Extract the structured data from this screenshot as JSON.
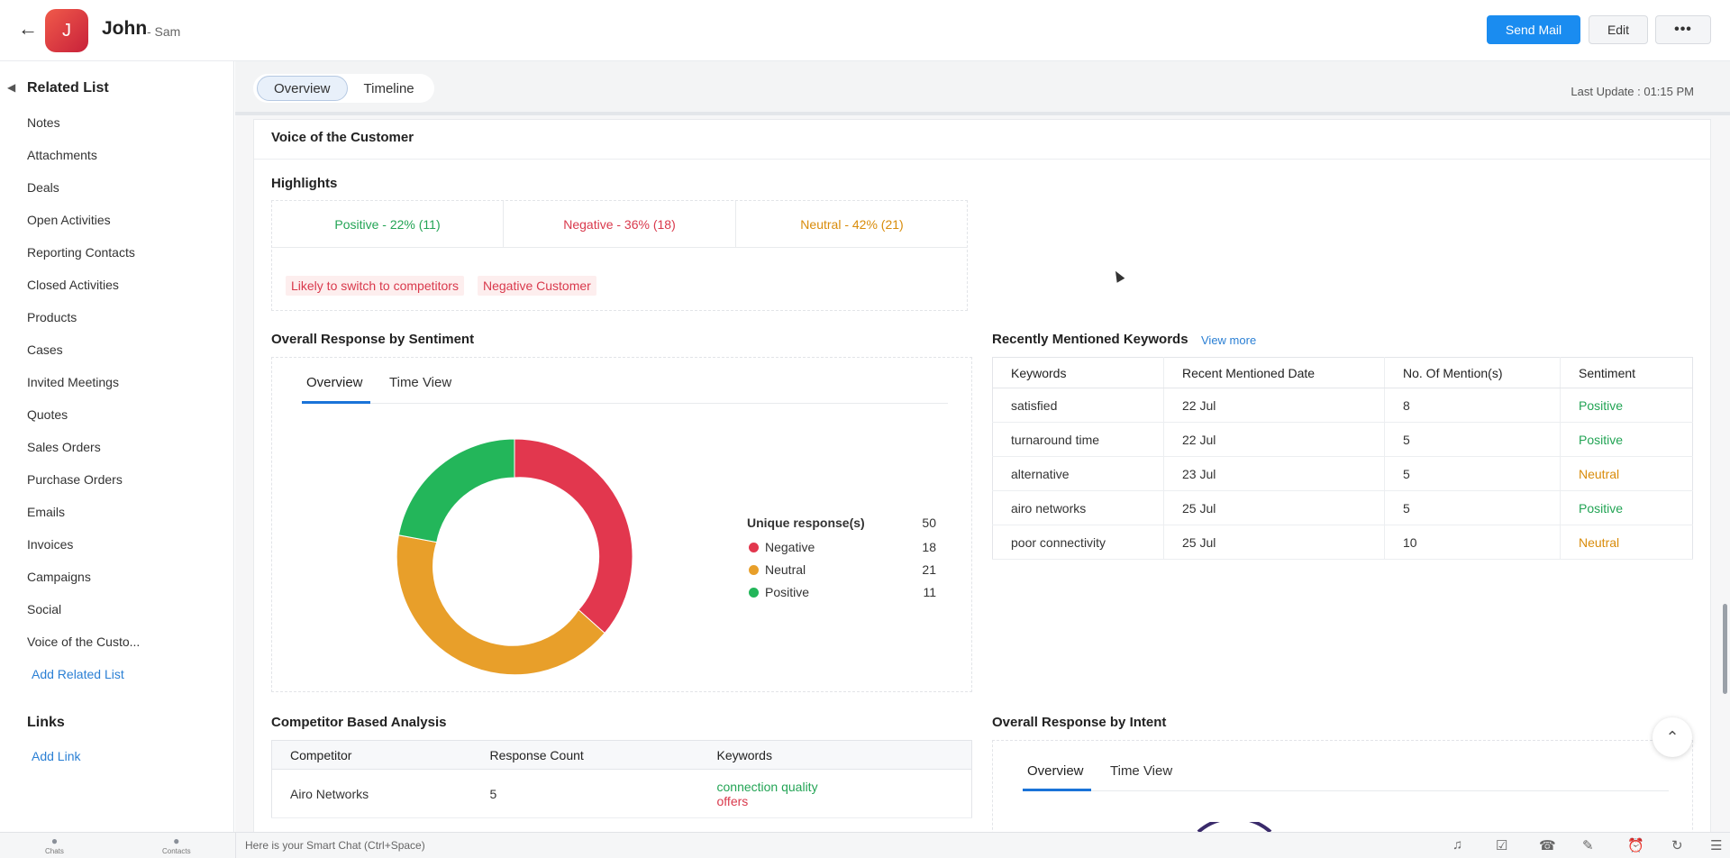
{
  "header": {
    "avatar_letter": "J",
    "name": "John",
    "subname": "- Sam",
    "send_mail": "Send Mail",
    "edit": "Edit",
    "more": "•••"
  },
  "sidebar": {
    "title": "Related List",
    "items": [
      "Notes",
      "Attachments",
      "Deals",
      "Open Activities",
      "Reporting Contacts",
      "Closed Activities",
      "Products",
      "Cases",
      "Invited Meetings",
      "Quotes",
      "Sales Orders",
      "Purchase Orders",
      "Emails",
      "Invoices",
      "Campaigns",
      "Social",
      "Voice of the Custo..."
    ],
    "add_related": "Add Related List",
    "links_title": "Links",
    "add_link": "Add Link"
  },
  "tabs": {
    "overview": "Overview",
    "timeline": "Timeline",
    "last_update": "Last Update : 01:15 PM"
  },
  "voc": {
    "title": "Voice of the Customer",
    "highlights_title": "Highlights",
    "positive": "Positive - 22% (11)",
    "negative": "Negative - 36% (18)",
    "neutral": "Neutral - 42% (21)",
    "tags": [
      "Likely to switch to competitors",
      "Negative Customer"
    ]
  },
  "sentiment": {
    "title": "Overall Response by Sentiment",
    "tab_overview": "Overview",
    "tab_timeview": "Time View",
    "legend_header": "Unique response(s)",
    "legend_total": "50",
    "rows": [
      {
        "label": "Negative",
        "value": "18",
        "color": "#e2374e"
      },
      {
        "label": "Neutral",
        "value": "21",
        "color": "#e89f2a"
      },
      {
        "label": "Positive",
        "value": "11",
        "color": "#23b65a"
      }
    ]
  },
  "keywords": {
    "title": "Recently Mentioned Keywords",
    "view_more": "View more",
    "headers": [
      "Keywords",
      "Recent Mentioned Date",
      "No. Of Mention(s)",
      "Sentiment"
    ],
    "rows": [
      {
        "keyword": "satisfied",
        "date": "22 Jul",
        "count": "8",
        "sentiment": "Positive"
      },
      {
        "keyword": "turnaround time",
        "date": "22 Jul",
        "count": "5",
        "sentiment": "Positive"
      },
      {
        "keyword": "alternative",
        "date": "23 Jul",
        "count": "5",
        "sentiment": "Neutral"
      },
      {
        "keyword": "airo networks",
        "date": "25 Jul",
        "count": "5",
        "sentiment": "Positive"
      },
      {
        "keyword": "poor connectivity",
        "date": "25 Jul",
        "count": "10",
        "sentiment": "Neutral"
      }
    ]
  },
  "competitor": {
    "title": "Competitor Based Analysis",
    "headers": [
      "Competitor",
      "Response Count",
      "Keywords"
    ],
    "rows": [
      {
        "name": "Airo Networks",
        "count": "5",
        "kw1": "connection quality",
        "kw2": "offers"
      }
    ]
  },
  "intent": {
    "title": "Overall Response by Intent",
    "tab_overview": "Overview",
    "tab_timeview": "Time View"
  },
  "bottom": {
    "chats": "Chats",
    "contacts": "Contacts",
    "smartchat": "Here is your Smart Chat (Ctrl+Space)"
  },
  "colors": {
    "positive": "#23a455",
    "negative": "#d9394c",
    "neutral": "#d98c0b",
    "accent": "#1a8cf0"
  }
}
